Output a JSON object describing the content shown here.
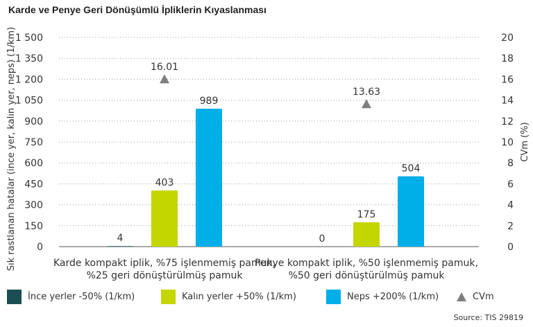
{
  "title": "Karde ve Penye Geri Dönüşümlü İpliklerin Kıyaslanması",
  "source": "Source: TIS 29819",
  "legend": [
    {
      "label": "İnce yerler -50% (1/km)",
      "color": "#1b4e52",
      "shape": "square"
    },
    {
      "label": "Kalın yerler +50% (1/km)",
      "color": "#c4d600",
      "shape": "square"
    },
    {
      "label": "Neps +200% (1/km)",
      "color": "#00aee8",
      "shape": "square"
    },
    {
      "label": "CVm",
      "color": "#7f7f7f",
      "shape": "triangle"
    }
  ],
  "chart_data": {
    "type": "bar",
    "categories": [
      [
        "Karde kompakt iplik, %75 işlenmemiş pamuk,",
        "%25 geri dönüştürülmüş pamuk"
      ],
      [
        "Penye kompakt iplik, %50 işlenmemiş pamuk,",
        "%50 geri dönüştürülmüş pamuk"
      ]
    ],
    "series": [
      {
        "name": "İnce yerler -50% (1/km)",
        "values": [
          4,
          0
        ],
        "labels": [
          "4",
          "0"
        ],
        "color": "#1b4e52"
      },
      {
        "name": "Kalın yerler +50% (1/km)",
        "values": [
          403,
          175
        ],
        "labels": [
          "403",
          "175"
        ],
        "color": "#c4d600"
      },
      {
        "name": "Neps +200% (1/km)",
        "values": [
          989,
          504
        ],
        "labels": [
          "989",
          "504"
        ],
        "color": "#00aee8"
      }
    ],
    "secondary_series": {
      "name": "CVm",
      "values": [
        16.01,
        13.63
      ],
      "labels": [
        "16.01",
        "13.63"
      ],
      "color": "#7f7f7f",
      "marker": "triangle"
    },
    "ylabel": "Sık rastlanan hatalar (ince yer, kalın yer, neps) (1/km)",
    "ylim": [
      0,
      1500
    ],
    "yticks": [
      0,
      150,
      300,
      450,
      600,
      750,
      900,
      1050,
      1200,
      1350,
      1500
    ],
    "ytick_labels": [
      "0",
      "150",
      "300",
      "450",
      "600",
      "750",
      "900",
      "1 050",
      "1 200",
      "1 350",
      "1 500"
    ],
    "y2label": "CVm (%)",
    "y2lim": [
      0,
      20
    ],
    "y2ticks": [
      0,
      2,
      4,
      6,
      8,
      10,
      12,
      14,
      16,
      18,
      20
    ],
    "grid": "horizontal-dotted",
    "legend_position": "bottom"
  }
}
